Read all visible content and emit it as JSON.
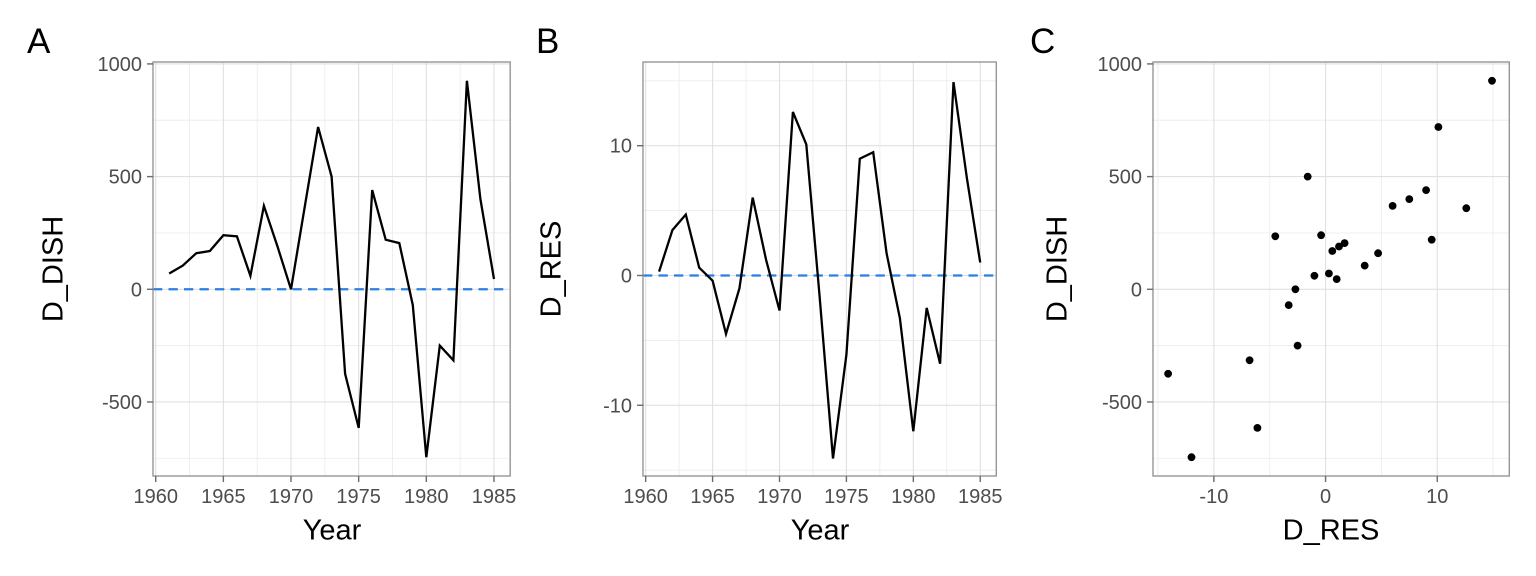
{
  "figure": {
    "background": "#ffffff",
    "colors": {
      "data_line": "#000000",
      "scatter_point": "#000000",
      "zero_reference_line": "#2b7fe2",
      "grid_major": "#e0e0e0",
      "grid_minor": "#ededed",
      "panel_border": "#969696",
      "tick_mark": "#6b6b6b",
      "tick_label": "#4d4d4d",
      "axis_title": "#000000"
    }
  },
  "chart_data": [
    {
      "type": "line",
      "tag": "A",
      "title": "",
      "xlabel": "Year",
      "ylabel": "D_DISH",
      "x": [
        1961,
        1962,
        1963,
        1964,
        1965,
        1966,
        1967,
        1968,
        1969,
        1970,
        1971,
        1972,
        1973,
        1974,
        1975,
        1976,
        1977,
        1978,
        1979,
        1980,
        1981,
        1982,
        1983,
        1984,
        1985
      ],
      "y": [
        70,
        105,
        160,
        170,
        240,
        235,
        60,
        370,
        190,
        0,
        360,
        720,
        500,
        -375,
        -615,
        440,
        220,
        205,
        -70,
        -745,
        -250,
        -315,
        925,
        400,
        45
      ],
      "x_ticks": [
        1960,
        1965,
        1970,
        1975,
        1980,
        1985
      ],
      "y_ticks": [
        -500,
        0,
        500,
        1000
      ],
      "xlim": [
        1959.8,
        1986.2
      ],
      "ylim": [
        -828.5,
        1008.5
      ],
      "zero_line": true,
      "grid": true,
      "legend": "none"
    },
    {
      "type": "line",
      "tag": "B",
      "title": "",
      "xlabel": "Year",
      "ylabel": "D_RES",
      "x": [
        1961,
        1962,
        1963,
        1964,
        1965,
        1966,
        1967,
        1968,
        1969,
        1970,
        1971,
        1972,
        1973,
        1974,
        1975,
        1976,
        1977,
        1978,
        1979,
        1980,
        1981,
        1982,
        1983,
        1984,
        1985
      ],
      "y": [
        0.3,
        3.5,
        4.7,
        0.6,
        -0.4,
        -4.5,
        -1.0,
        6.0,
        1.2,
        -2.7,
        12.6,
        10.1,
        -1.6,
        -14.1,
        -6.1,
        9.0,
        9.5,
        1.7,
        -3.3,
        -12.0,
        -2.5,
        -6.8,
        14.9,
        7.5,
        1.0
      ],
      "x_ticks": [
        1960,
        1965,
        1970,
        1975,
        1980,
        1985
      ],
      "y_ticks": [
        -10,
        0,
        10
      ],
      "xlim": [
        1959.8,
        1986.2
      ],
      "ylim": [
        -15.45,
        16.45
      ],
      "zero_line": true,
      "grid": true,
      "legend": "none"
    },
    {
      "type": "scatter",
      "tag": "C",
      "title": "",
      "xlabel": "D_RES",
      "ylabel": "D_DISH",
      "x": [
        0.3,
        3.5,
        4.7,
        0.6,
        -0.4,
        -4.5,
        -1.0,
        6.0,
        1.2,
        -2.7,
        12.6,
        10.1,
        -1.6,
        -14.1,
        -6.1,
        9.0,
        9.5,
        1.7,
        -3.3,
        -12.0,
        -2.5,
        -6.8,
        14.9,
        7.5,
        1.0
      ],
      "y": [
        70,
        105,
        160,
        170,
        240,
        235,
        60,
        370,
        190,
        0,
        360,
        720,
        500,
        -375,
        -615,
        440,
        220,
        205,
        -70,
        -745,
        -250,
        -315,
        925,
        400,
        45
      ],
      "x_ticks": [
        -10,
        0,
        10
      ],
      "y_ticks": [
        -500,
        0,
        500,
        1000
      ],
      "xlim": [
        -15.45,
        16.45
      ],
      "ylim": [
        -828.5,
        1008.5
      ],
      "zero_line": false,
      "grid": true,
      "legend": "none"
    }
  ]
}
